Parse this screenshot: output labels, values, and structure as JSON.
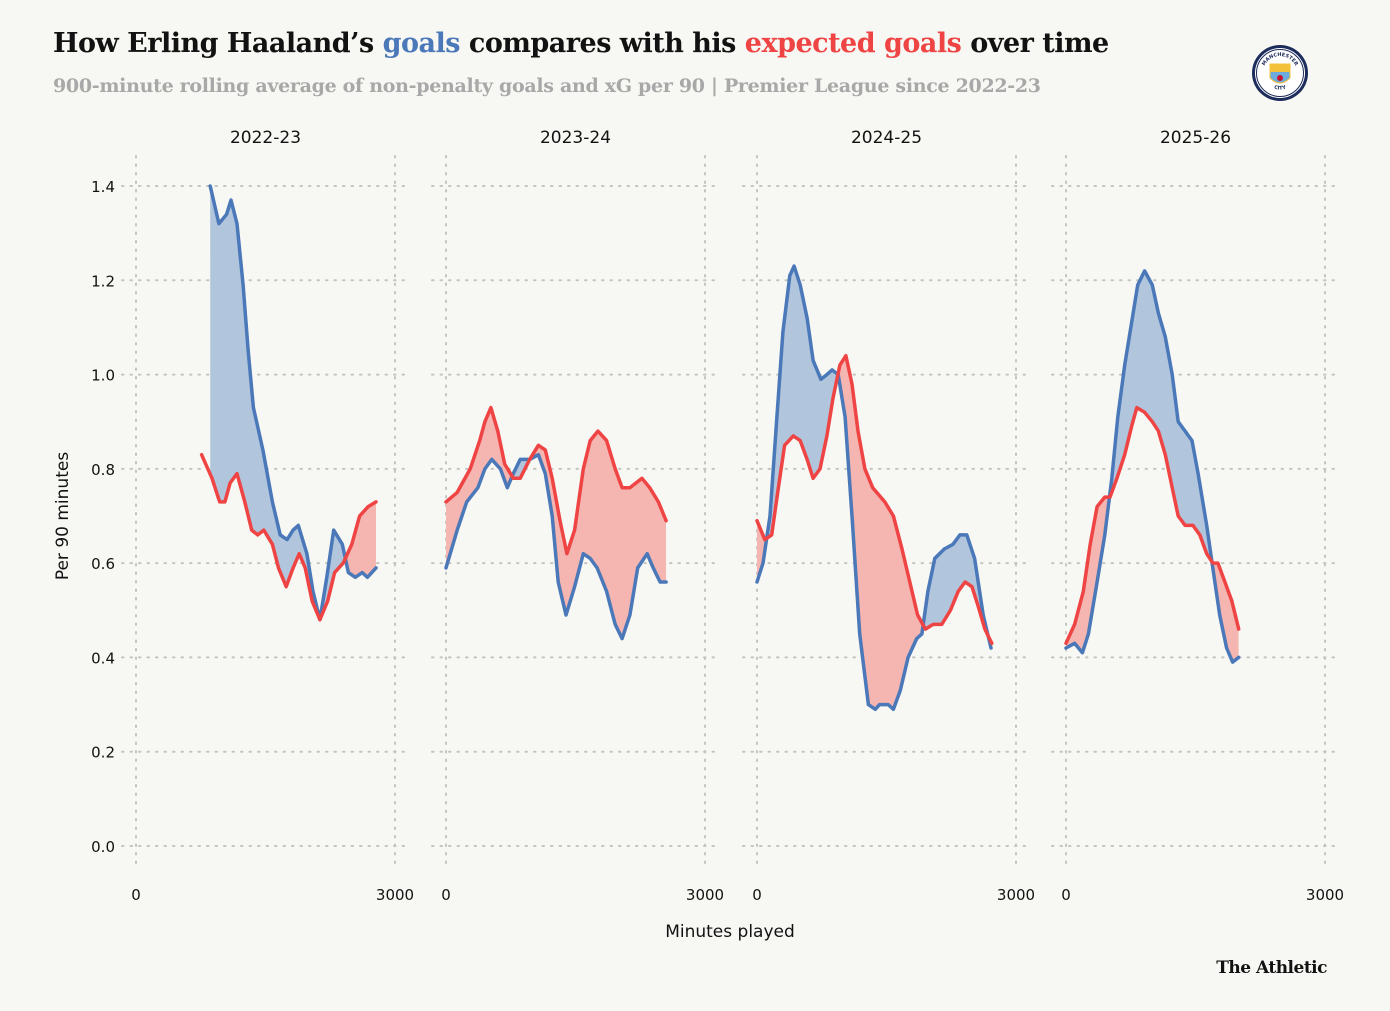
{
  "header": {
    "title_parts": [
      {
        "text": "How Erling Haaland’s ",
        "color": "#121212"
      },
      {
        "text": "goals",
        "color": "#4a78b8"
      },
      {
        "text": " compares with his ",
        "color": "#121212"
      },
      {
        "text": "expected goals",
        "color": "#ef4444"
      },
      {
        "text": " over time",
        "color": "#121212"
      }
    ],
    "subtitle": "900-minute rolling average of non-penalty goals and xG per 90 | Premier League since 2022-23",
    "logo_text": "MANCHESTER CITY",
    "logo_years": [
      "18",
      "94"
    ]
  },
  "footer": {
    "brand": "The Athletic"
  },
  "colors": {
    "goals_line": "#4a78b8",
    "goals_fill": "#b1c5dd",
    "xg_line": "#ef4444",
    "xg_fill": "#f5b5b1",
    "grid": "#c4c4c0",
    "background": "#f7f7f3"
  },
  "chart_data": {
    "type": "area",
    "xlabel": "Minutes played",
    "ylabel": "Per 90 minutes",
    "xlim": [
      0,
      3000
    ],
    "ylim": [
      0,
      1.4
    ],
    "xticks": [
      "0",
      "3000"
    ],
    "yticks": [
      "0.0",
      "0.2",
      "0.4",
      "0.6",
      "0.8",
      "1.0",
      "1.2",
      "1.4"
    ],
    "grid": true,
    "panels": [
      {
        "title": "2022-23",
        "series": [
          {
            "name": "goals",
            "x": [
              860,
              960,
              1050,
              1100,
              1170,
              1240,
              1300,
              1360,
              1470,
              1580,
              1670,
              1750,
              1820,
              1880,
              1980,
              2050,
              2130,
              2210,
              2290,
              2390,
              2460,
              2540,
              2620,
              2680,
              2780
            ],
            "y": [
              1.4,
              1.32,
              1.34,
              1.37,
              1.32,
              1.19,
              1.05,
              0.93,
              0.84,
              0.73,
              0.66,
              0.65,
              0.67,
              0.68,
              0.62,
              0.54,
              0.48,
              0.57,
              0.67,
              0.64,
              0.58,
              0.57,
              0.58,
              0.57,
              0.59
            ]
          },
          {
            "name": "expected goals",
            "x": [
              760,
              880,
              970,
              1030,
              1090,
              1170,
              1260,
              1340,
              1410,
              1480,
              1580,
              1650,
              1740,
              1820,
              1890,
              1960,
              2040,
              2130,
              2220,
              2300,
              2400,
              2500,
              2590,
              2690,
              2780
            ],
            "y": [
              0.83,
              0.78,
              0.73,
              0.73,
              0.77,
              0.79,
              0.73,
              0.67,
              0.66,
              0.67,
              0.64,
              0.59,
              0.55,
              0.59,
              0.62,
              0.59,
              0.52,
              0.48,
              0.52,
              0.58,
              0.6,
              0.64,
              0.7,
              0.72,
              0.73
            ]
          }
        ]
      },
      {
        "title": "2023-24",
        "series": [
          {
            "name": "goals",
            "x": [
              0,
              130,
              240,
              370,
              450,
              530,
              630,
              710,
              780,
              860,
              970,
              1070,
              1150,
              1230,
              1300,
              1390,
              1490,
              1590,
              1670,
              1750,
              1860,
              1960,
              2040,
              2130,
              2220,
              2330,
              2400,
              2480,
              2550
            ],
            "y": [
              0.59,
              0.67,
              0.73,
              0.76,
              0.8,
              0.82,
              0.8,
              0.76,
              0.79,
              0.82,
              0.82,
              0.83,
              0.79,
              0.7,
              0.56,
              0.49,
              0.55,
              0.62,
              0.61,
              0.59,
              0.54,
              0.47,
              0.44,
              0.49,
              0.59,
              0.62,
              0.59,
              0.56,
              0.56
            ]
          },
          {
            "name": "expected goals",
            "x": [
              0,
              130,
              280,
              390,
              450,
              520,
              600,
              680,
              780,
              860,
              970,
              1070,
              1150,
              1230,
              1320,
              1400,
              1490,
              1590,
              1670,
              1760,
              1860,
              1960,
              2040,
              2130,
              2270,
              2360,
              2460,
              2550
            ],
            "y": [
              0.73,
              0.75,
              0.8,
              0.86,
              0.9,
              0.93,
              0.88,
              0.81,
              0.78,
              0.78,
              0.82,
              0.85,
              0.84,
              0.78,
              0.69,
              0.62,
              0.67,
              0.8,
              0.86,
              0.88,
              0.86,
              0.8,
              0.76,
              0.76,
              0.78,
              0.76,
              0.73,
              0.69
            ]
          }
        ]
      },
      {
        "title": "2024-25",
        "series": [
          {
            "name": "goals",
            "x": [
              0,
              70,
              150,
              230,
              300,
              380,
              430,
              500,
              580,
              650,
              740,
              810,
              870,
              940,
              1020,
              1100,
              1190,
              1290,
              1370,
              1420,
              1520,
              1580,
              1660,
              1750,
              1850,
              1910,
              1980,
              2060,
              2170,
              2270,
              2350,
              2430,
              2520,
              2620,
              2710
            ],
            "y": [
              0.56,
              0.6,
              0.7,
              0.91,
              1.09,
              1.21,
              1.23,
              1.19,
              1.12,
              1.03,
              0.99,
              1.0,
              1.01,
              1.0,
              0.91,
              0.7,
              0.45,
              0.3,
              0.29,
              0.3,
              0.3,
              0.29,
              0.33,
              0.4,
              0.44,
              0.45,
              0.54,
              0.61,
              0.63,
              0.64,
              0.66,
              0.66,
              0.61,
              0.49,
              0.42
            ]
          },
          {
            "name": "expected goals",
            "x": [
              0,
              90,
              170,
              240,
              320,
              420,
              500,
              580,
              650,
              730,
              810,
              880,
              960,
              1030,
              1100,
              1170,
              1250,
              1340,
              1480,
              1580,
              1680,
              1770,
              1860,
              1950,
              2040,
              2140,
              2240,
              2330,
              2410,
              2490,
              2560,
              2640,
              2720
            ],
            "y": [
              0.69,
              0.65,
              0.66,
              0.75,
              0.85,
              0.87,
              0.86,
              0.82,
              0.78,
              0.8,
              0.87,
              0.95,
              1.02,
              1.04,
              0.98,
              0.88,
              0.8,
              0.76,
              0.73,
              0.7,
              0.63,
              0.56,
              0.49,
              0.46,
              0.47,
              0.47,
              0.5,
              0.54,
              0.56,
              0.55,
              0.51,
              0.46,
              0.43
            ]
          }
        ]
      },
      {
        "title": "2025-26",
        "series": [
          {
            "name": "goals",
            "x": [
              0,
              100,
              190,
              260,
              360,
              450,
              530,
              600,
              680,
              760,
              830,
              910,
              1000,
              1070,
              1150,
              1230,
              1300,
              1380,
              1460,
              1530,
              1630,
              1700,
              1780,
              1860,
              1930,
              2000
            ],
            "y": [
              0.42,
              0.43,
              0.41,
              0.45,
              0.56,
              0.66,
              0.78,
              0.91,
              1.02,
              1.11,
              1.19,
              1.22,
              1.19,
              1.13,
              1.08,
              1.0,
              0.9,
              0.88,
              0.86,
              0.79,
              0.68,
              0.59,
              0.49,
              0.42,
              0.39,
              0.4
            ]
          },
          {
            "name": "expected goals",
            "x": [
              0,
              100,
              200,
              280,
              360,
              450,
              510,
              590,
              680,
              760,
              820,
              910,
              1000,
              1070,
              1150,
              1230,
              1300,
              1380,
              1470,
              1550,
              1630,
              1700,
              1760,
              1840,
              1920,
              2000
            ],
            "y": [
              0.43,
              0.47,
              0.54,
              0.64,
              0.72,
              0.74,
              0.74,
              0.78,
              0.83,
              0.89,
              0.93,
              0.92,
              0.9,
              0.88,
              0.83,
              0.76,
              0.7,
              0.68,
              0.68,
              0.66,
              0.62,
              0.6,
              0.6,
              0.56,
              0.52,
              0.46
            ]
          }
        ]
      }
    ]
  }
}
